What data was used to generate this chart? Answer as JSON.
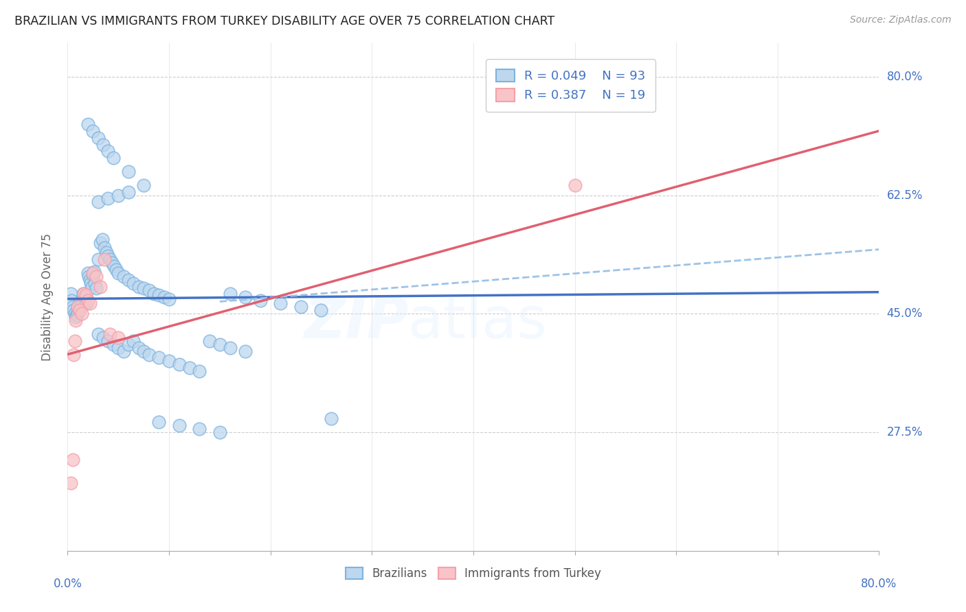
{
  "title": "BRAZILIAN VS IMMIGRANTS FROM TURKEY DISABILITY AGE OVER 75 CORRELATION CHART",
  "source_text": "Source: ZipAtlas.com",
  "ylabel": "Disability Age Over 75",
  "xlim": [
    0.0,
    0.8
  ],
  "ylim": [
    0.1,
    0.85
  ],
  "yticks": [
    0.275,
    0.45,
    0.625,
    0.8
  ],
  "ytick_labels": [
    "27.5%",
    "45.0%",
    "62.5%",
    "80.0%"
  ],
  "legend_r1": "0.049",
  "legend_n1": "93",
  "legend_r2": "0.387",
  "legend_n2": "19",
  "blue_color": "#7EB3E0",
  "pink_color": "#F5A0A8",
  "blue_fill": "#BDD7EE",
  "pink_fill": "#F8C4C8",
  "trend_blue_color": "#4472C4",
  "trend_pink_color": "#E06070",
  "trend_dash_color": "#9DC3E6",
  "axis_label_color": "#4472C4",
  "background_color": "#FFFFFF",
  "blue_points_x": [
    0.003,
    0.004,
    0.005,
    0.006,
    0.007,
    0.008,
    0.009,
    0.01,
    0.01,
    0.011,
    0.012,
    0.012,
    0.013,
    0.014,
    0.015,
    0.015,
    0.016,
    0.017,
    0.018,
    0.019,
    0.02,
    0.021,
    0.022,
    0.023,
    0.024,
    0.025,
    0.026,
    0.027,
    0.028,
    0.03,
    0.032,
    0.034,
    0.036,
    0.038,
    0.04,
    0.042,
    0.044,
    0.046,
    0.048,
    0.05,
    0.055,
    0.06,
    0.065,
    0.07,
    0.075,
    0.08,
    0.085,
    0.09,
    0.095,
    0.1,
    0.03,
    0.035,
    0.04,
    0.045,
    0.05,
    0.055,
    0.06,
    0.065,
    0.07,
    0.075,
    0.08,
    0.09,
    0.1,
    0.11,
    0.12,
    0.13,
    0.14,
    0.15,
    0.16,
    0.175,
    0.03,
    0.04,
    0.05,
    0.06,
    0.16,
    0.175,
    0.19,
    0.21,
    0.23,
    0.25,
    0.02,
    0.025,
    0.03,
    0.035,
    0.04,
    0.045,
    0.06,
    0.075,
    0.09,
    0.11,
    0.13,
    0.15,
    0.26
  ],
  "blue_points_y": [
    0.48,
    0.47,
    0.46,
    0.455,
    0.45,
    0.445,
    0.448,
    0.452,
    0.46,
    0.455,
    0.458,
    0.465,
    0.462,
    0.47,
    0.475,
    0.48,
    0.468,
    0.472,
    0.476,
    0.465,
    0.51,
    0.505,
    0.5,
    0.495,
    0.49,
    0.508,
    0.512,
    0.495,
    0.488,
    0.53,
    0.555,
    0.56,
    0.548,
    0.54,
    0.535,
    0.53,
    0.525,
    0.52,
    0.515,
    0.51,
    0.505,
    0.5,
    0.495,
    0.49,
    0.488,
    0.485,
    0.48,
    0.478,
    0.475,
    0.472,
    0.42,
    0.415,
    0.41,
    0.405,
    0.4,
    0.395,
    0.405,
    0.41,
    0.4,
    0.395,
    0.39,
    0.385,
    0.38,
    0.375,
    0.37,
    0.365,
    0.41,
    0.405,
    0.4,
    0.395,
    0.615,
    0.62,
    0.625,
    0.63,
    0.48,
    0.475,
    0.47,
    0.465,
    0.46,
    0.455,
    0.73,
    0.72,
    0.71,
    0.7,
    0.69,
    0.68,
    0.66,
    0.64,
    0.29,
    0.285,
    0.28,
    0.275,
    0.295
  ],
  "pink_points_x": [
    0.003,
    0.005,
    0.006,
    0.007,
    0.008,
    0.01,
    0.012,
    0.014,
    0.016,
    0.018,
    0.02,
    0.022,
    0.025,
    0.028,
    0.032,
    0.036,
    0.042,
    0.05,
    0.5
  ],
  "pink_points_y": [
    0.2,
    0.235,
    0.39,
    0.41,
    0.44,
    0.46,
    0.455,
    0.45,
    0.48,
    0.478,
    0.47,
    0.465,
    0.51,
    0.505,
    0.49,
    0.53,
    0.42,
    0.415,
    0.64
  ],
  "blue_trend_x0": 0.0,
  "blue_trend_x1": 0.8,
  "blue_trend_y0": 0.472,
  "blue_trend_y1": 0.482,
  "pink_trend_x0": 0.0,
  "pink_trend_x1": 0.8,
  "pink_trend_y0": 0.39,
  "pink_trend_y1": 0.72,
  "dash_trend_x0": 0.15,
  "dash_trend_x1": 0.8,
  "dash_trend_y0": 0.468,
  "dash_trend_y1": 0.545
}
